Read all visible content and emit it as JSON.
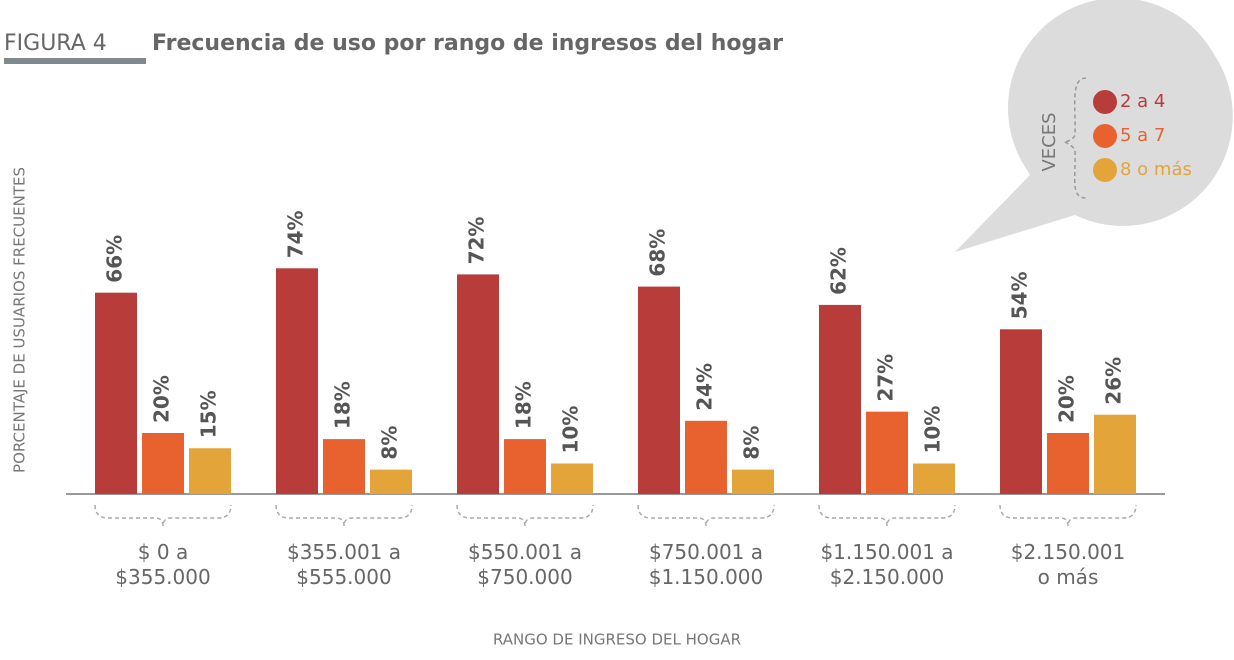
{
  "chart_data": {
    "type": "bar",
    "figure": "FIGURA 4",
    "title": "Frecuencia de uso por rango de ingresos del hogar",
    "y_label": "PORCENTAJE DE USUARIOS FRECUENTES",
    "x_label": "RANGO DE INGRESO DEL HOGAR",
    "legend_title": "VECES",
    "categories": [
      "$ 0 a\n$355.000",
      "$355.001 a\n$555.000",
      "$550.001 a\n$750.000",
      "$750.001 a\n$1.150.000",
      "$1.150.001 a\n$2.150.000",
      "$2.150.001\no más"
    ],
    "ylim": [
      0,
      100
    ],
    "series": [
      {
        "name": "2 a 4",
        "color": "#b83c3a",
        "values": [
          66,
          74,
          72,
          68,
          62,
          54
        ],
        "value_labels": [
          "66%",
          "74%",
          "72%",
          "68%",
          "62%",
          "54%"
        ]
      },
      {
        "name": "5 a 7",
        "color": "#e8622f",
        "values": [
          20,
          18,
          18,
          24,
          27,
          20
        ],
        "value_labels": [
          "20%",
          "18%",
          "18%",
          "24%",
          "27%",
          "20%"
        ]
      },
      {
        "name": "8 o más",
        "color": "#e3a43a",
        "values": [
          15,
          8,
          10,
          8,
          10,
          26
        ],
        "value_labels": [
          "15%",
          "8%",
          "10%",
          "8%",
          "10%",
          "26%"
        ]
      }
    ]
  }
}
